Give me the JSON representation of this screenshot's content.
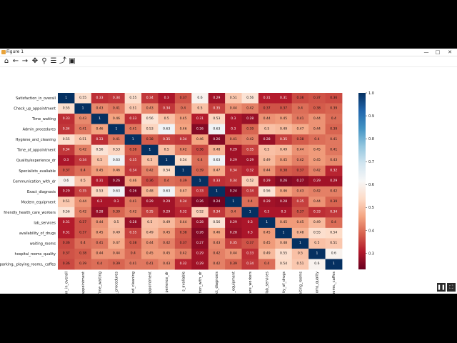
{
  "window": {
    "title": "Figure 1",
    "controls": {
      "minimize": "—",
      "maximize": "□",
      "close": "✕"
    }
  },
  "toolbar": {
    "icons": [
      "home-icon",
      "back-arrow-icon",
      "forward-arrow-icon",
      "pan-icon",
      "zoom-icon",
      "configure-subplots-icon",
      "edit-axes-icon",
      "save-icon"
    ]
  },
  "chart_data": {
    "type": "heatmap",
    "colormap": "RdBu",
    "vmin": 0.23,
    "vmax": 1.0,
    "colorbar_ticks": [
      "1.0",
      "0.9",
      "0.8",
      "0.7",
      "0.6",
      "0.5",
      "0.4",
      "0.3"
    ],
    "row_labels": [
      "Satisfaction_in_overall",
      "Check_up_appointment",
      "Time_waiting",
      "Admin_procedures",
      "Hygiene_and_cleaning",
      "Time_of_appointment",
      "Quality/experience_dr",
      "Specialists_avaliable",
      "Communication_with_dr",
      "Exact_diagnosis",
      "Modern_equipment",
      "friendly_health_care_workers",
      "lab_services",
      "availability_of_drugs",
      "waiting_rooms",
      "hospital_rooms_quality",
      "parking,_playing_rooms,_caffes"
    ],
    "col_labels": [
      "Satisfaction_in_overall",
      "Check_up_appointment",
      "Time_waiting",
      "Admin_procedures",
      "Hygiene_and_cleaning",
      "Time_of_appointment",
      "Quality/experience_dr",
      "Specialists_avaliable",
      "Communication_with_dr",
      "Exact_diagnosis",
      "Modern_equipment",
      "friendly_health_care_workers",
      "lab_services",
      "availability_of_drugs",
      "waiting_rooms",
      "hospital_rooms_quality",
      "parking,_playing_rooms,_caffes"
    ],
    "col_labels_visible": [
      "on_in_overall",
      "appointment",
      "Time_waiting",
      "n_procedures",
      "nd_cleaning",
      "appointment",
      "perience_dr",
      "s_avaliable",
      "tion_with_dr",
      "ct_diagnosis",
      "_equipment",
      "care_workers",
      "lab_services",
      "ity_of_drugs",
      "aiting_rooms",
      "oms_quality",
      "ooms,_caffes"
    ],
    "values": [
      [
        1,
        0.55,
        0.33,
        0.34,
        0.55,
        0.34,
        0.3,
        0.37,
        0.6,
        0.29,
        0.51,
        0.56,
        0.31,
        0.31,
        0.36,
        0.37,
        0.36
      ],
      [
        0.55,
        1,
        0.43,
        0.41,
        0.51,
        0.43,
        0.34,
        0.4,
        0.5,
        0.35,
        0.44,
        0.42,
        0.37,
        0.37,
        0.4,
        0.38,
        0.39
      ],
      [
        0.33,
        0.43,
        1,
        0.46,
        0.33,
        0.56,
        0.5,
        0.45,
        0.31,
        0.53,
        0.3,
        0.28,
        0.44,
        0.45,
        0.41,
        0.44,
        0.4
      ],
      [
        0.34,
        0.41,
        0.46,
        1,
        0.41,
        0.53,
        0.63,
        0.46,
        0.26,
        0.63,
        0.3,
        0.39,
        0.5,
        0.49,
        0.47,
        0.44,
        0.39
      ],
      [
        0.55,
        0.51,
        0.33,
        0.41,
        1,
        0.38,
        0.35,
        0.34,
        0.46,
        0.26,
        0.41,
        0.42,
        0.28,
        0.35,
        0.38,
        0.4,
        0.41
      ],
      [
        0.34,
        0.42,
        0.56,
        0.53,
        0.38,
        1,
        0.5,
        0.42,
        0.36,
        0.48,
        0.29,
        0.35,
        0.5,
        0.49,
        0.44,
        0.45,
        0.41
      ],
      [
        0.3,
        0.34,
        0.5,
        0.63,
        0.35,
        0.5,
        1,
        0.54,
        0.4,
        0.63,
        0.29,
        0.29,
        0.49,
        0.45,
        0.42,
        0.45,
        0.43
      ],
      [
        0.37,
        0.4,
        0.45,
        0.46,
        0.34,
        0.42,
        0.54,
        1,
        0.39,
        0.47,
        0.34,
        0.32,
        0.44,
        0.38,
        0.37,
        0.42,
        0.32
      ],
      [
        0.6,
        0.5,
        0.31,
        0.26,
        0.46,
        0.36,
        0.4,
        0.39,
        1,
        0.33,
        0.34,
        0.52,
        0.29,
        0.26,
        0.27,
        0.29,
        0.29
      ],
      [
        0.29,
        0.35,
        0.53,
        0.63,
        0.26,
        0.48,
        0.63,
        0.47,
        0.33,
        1,
        0.24,
        0.34,
        0.56,
        0.46,
        0.43,
        0.42,
        0.42
      ],
      [
        0.51,
        0.44,
        0.3,
        0.3,
        0.41,
        0.29,
        0.29,
        0.34,
        0.26,
        0.24,
        1,
        0.4,
        0.29,
        0.28,
        0.35,
        0.44,
        0.39
      ],
      [
        0.56,
        0.42,
        0.28,
        0.39,
        0.42,
        0.35,
        0.29,
        0.32,
        0.52,
        0.34,
        0.4,
        1,
        0.3,
        0.3,
        0.37,
        0.33,
        0.34
      ],
      [
        0.31,
        0.37,
        0.44,
        0.5,
        0.28,
        0.5,
        0.49,
        0.44,
        0.28,
        0.56,
        0.29,
        0.3,
        1,
        0.45,
        0.45,
        0.49,
        0.4
      ],
      [
        0.31,
        0.37,
        0.45,
        0.49,
        0.35,
        0.49,
        0.45,
        0.38,
        0.26,
        0.46,
        0.28,
        0.3,
        0.45,
        1,
        0.48,
        0.55,
        0.54
      ],
      [
        0.36,
        0.4,
        0.41,
        0.47,
        0.38,
        0.44,
        0.42,
        0.37,
        0.27,
        0.43,
        0.35,
        0.37,
        0.45,
        0.48,
        1,
        0.5,
        0.51
      ],
      [
        0.37,
        0.38,
        0.44,
        0.44,
        0.4,
        0.45,
        0.45,
        0.42,
        0.29,
        0.42,
        0.44,
        0.33,
        0.49,
        0.55,
        0.5,
        1,
        0.6
      ],
      [
        0.36,
        0.39,
        0.4,
        0.39,
        0.41,
        0.41,
        0.43,
        0.32,
        0.29,
        0.42,
        0.39,
        0.34,
        0.4,
        0.54,
        0.51,
        0.6,
        1
      ]
    ]
  },
  "video_controls": {
    "pause": "❚❚",
    "fullscreen": "⛶"
  }
}
